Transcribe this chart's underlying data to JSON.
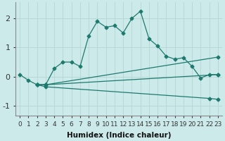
{
  "xlabel": "Humidex (Indice chaleur)",
  "bg_color": "#cceaea",
  "line_color": "#1e7a6e",
  "grid_color": "#b8d8d8",
  "xlim": [
    -0.5,
    23.5
  ],
  "ylim": [
    -1.35,
    2.55
  ],
  "xticks": [
    0,
    1,
    2,
    3,
    4,
    5,
    6,
    7,
    8,
    9,
    10,
    11,
    12,
    13,
    14,
    15,
    16,
    17,
    18,
    19,
    20,
    21,
    22,
    23
  ],
  "yticks": [
    -1,
    0,
    1,
    2
  ],
  "line1_x": [
    0,
    1,
    2,
    3,
    4,
    5,
    6,
    7,
    8,
    9,
    10,
    11,
    12,
    13,
    14,
    15,
    16,
    17,
    18,
    19,
    20,
    21,
    22,
    23
  ],
  "line1_y": [
    0.07,
    -0.13,
    -0.28,
    -0.28,
    0.28,
    0.5,
    0.5,
    0.35,
    1.4,
    1.9,
    1.7,
    1.75,
    1.5,
    2.0,
    2.25,
    1.3,
    1.05,
    0.7,
    0.6,
    0.65,
    0.35,
    -0.05,
    0.07,
    0.07
  ],
  "line2_x": [
    2,
    3,
    23
  ],
  "line2_y": [
    -0.28,
    -0.28,
    0.67
  ],
  "line3_x": [
    2,
    3,
    23
  ],
  "line3_y": [
    -0.28,
    -0.28,
    0.07
  ],
  "line4_x": [
    2,
    3,
    22,
    23
  ],
  "line4_y": [
    -0.28,
    -0.35,
    -0.75,
    -0.78
  ],
  "xlabel_fontsize": 7.5,
  "tick_fontsize": 6.5,
  "ytick_fontsize": 8
}
